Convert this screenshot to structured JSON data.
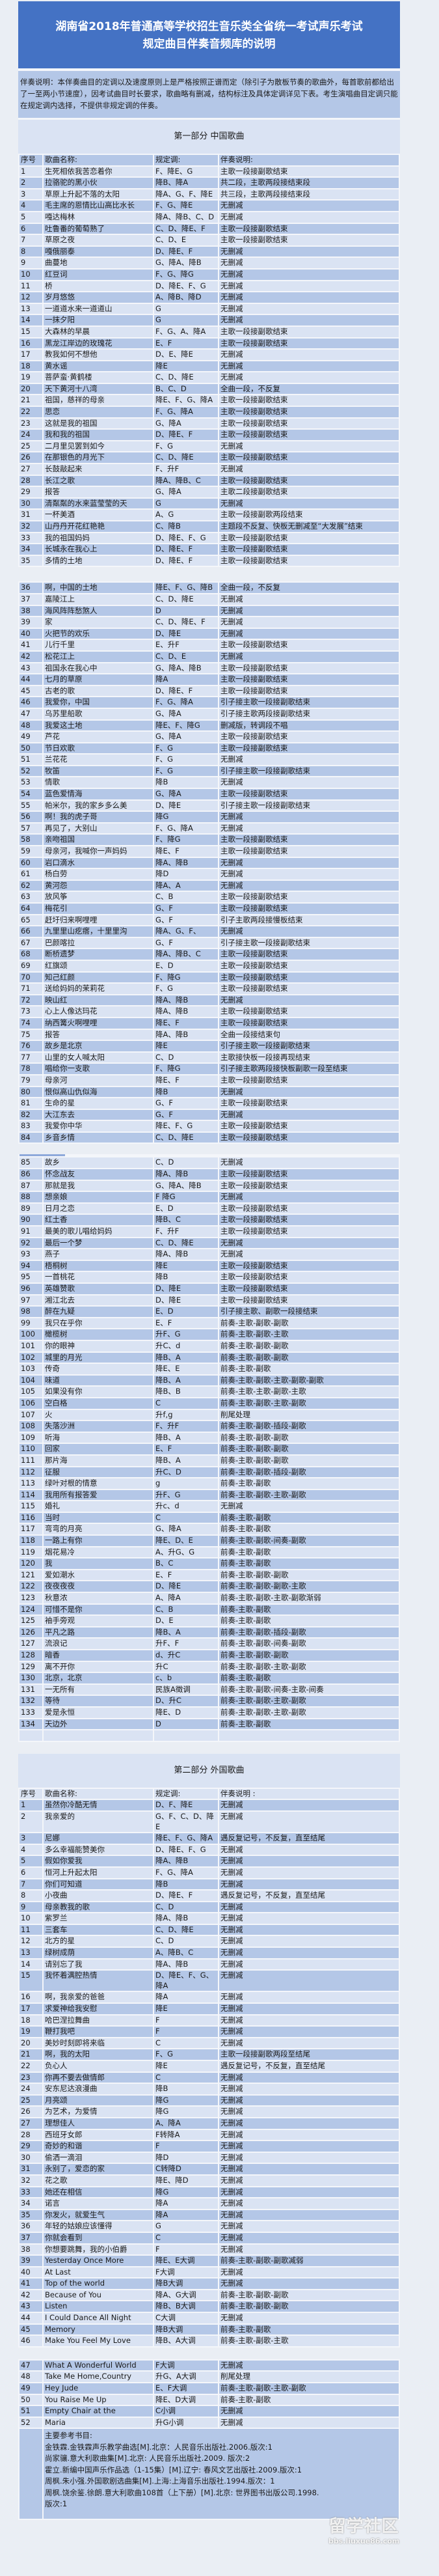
{
  "header": {
    "title_line1": "湖南省2018年普通高等学校招生音乐类全省统一考试声乐考试",
    "title_line2": "规定曲目伴奏音频库的说明"
  },
  "note": "伴奏说明：本伴奏曲目的定调以及速度原则上是严格按照正谱而定（除引子为散板节奏的歌曲外，每首歌前都给出了一至两小节速度），因考试曲目时长要求，歌曲略有删减，结构标注及具体定调详见下表。考生演唱曲目定调只能在规定调内选择，不提供非规定调的伴奏。",
  "colors": {
    "title_bg": "#4472c4",
    "row_dark": "#b4c7e7",
    "row_light": "#dae3f3"
  },
  "part1": {
    "heading": "第一部分  中国歌曲",
    "columns": [
      "序号",
      "歌曲名称:",
      "规定调:",
      "伴奏说明:"
    ],
    "segments": [
      [
        [
          "1",
          "生死相依我苦恋着你",
          "F、降E、G",
          "主歌一段接副歌结束"
        ],
        [
          "2",
          "拉骆驼的黑小伙",
          "降B、降A",
          "共二段，主歌两段接结束段"
        ],
        [
          "3",
          "草原上升起不落的太阳",
          "降A、G、F、降E",
          "共三段，主歌两段接结束段"
        ],
        [
          "4",
          "毛主席的恩情比山高比水长",
          "F、G、降E",
          "无删减"
        ],
        [
          "5",
          "嘎达梅林",
          "降A、降B、C、D",
          "无删减"
        ],
        [
          "6",
          "吐鲁番的葡萄熟了",
          "C、D、降E、F",
          "主歌一段接副歌结束"
        ],
        [
          "7",
          "草原之夜",
          "C、D、E",
          "主歌一段接副歌结束"
        ],
        [
          "8",
          "嘎俄丽泰",
          "D、降E、F",
          "无删减"
        ],
        [
          "9",
          "曲蔓地",
          "G、降A、降B",
          "无删减"
        ],
        [
          "10",
          "红豆词",
          "F、G、降G",
          "无删减"
        ],
        [
          "11",
          "桥",
          "D、降E、F、G",
          "无删减"
        ],
        [
          "12",
          "岁月悠悠",
          "A、降B、降D",
          "无删减"
        ],
        [
          "13",
          "一道道水来一道道山",
          "G",
          "无删减"
        ],
        [
          "14",
          "一抹夕阳",
          "G",
          "无删减"
        ],
        [
          "15",
          "大森林的早晨",
          "F、G、A、降A",
          "主歌一段接副歌结束"
        ],
        [
          "16",
          "黑龙江岸边的玫瑰花",
          "E、F",
          "主歌一段接副歌结束"
        ],
        [
          "17",
          "教我如何不想他",
          "D、E、降E",
          "无删减"
        ],
        [
          "18",
          "黄水谣",
          "降E",
          "无删减"
        ],
        [
          "19",
          "菩萨蛮·黄鹤楼",
          "C、D、降E",
          "无删减"
        ],
        [
          "20",
          "天下黄河十八湾",
          "B、C、D",
          "全曲一段，不反复"
        ],
        [
          "21",
          "祖国，慈祥的母亲",
          "降E、F、G、降A",
          "主歌一段接副歌结束"
        ],
        [
          "22",
          "思恋",
          "F、G、降A",
          "主歌一段接副歌结束"
        ],
        [
          "23",
          "这就是我的祖国",
          "G、降A",
          "主歌一段接副歌结束"
        ],
        [
          "24",
          "我和我的祖国",
          "D、降E、F",
          "主歌一段接副歌结束"
        ],
        [
          "25",
          "二月里见罢到如今",
          "F、G",
          "无删减"
        ],
        [
          "26",
          "在那银色的月光下",
          "C、D、降E",
          "主歌一段接副歌结束"
        ],
        [
          "27",
          "长鼓敲起来",
          "F、升F",
          "无删减"
        ],
        [
          "28",
          "长江之歌",
          "降A、降B、C",
          "主歌一段接副歌结束"
        ],
        [
          "29",
          "报答",
          "G、降A",
          "主歌二段接副歌结束"
        ],
        [
          "30",
          "清粼粼的水来蓝莹莹的天",
          "G",
          "无删减"
        ],
        [
          "31",
          "一杯美酒",
          "A、G",
          "主歌一段接副歌两段结束"
        ],
        [
          "32",
          "山丹丹开花红艳艳",
          "C、降B",
          "主题段不反复、快板无删减至“大发展”结束"
        ],
        [
          "33",
          "我的祖国妈妈",
          "D、降E、F、G",
          "主歌一段接副歌结束"
        ],
        [
          "34",
          "长城永在我心上",
          "D、降E、F",
          "主歌一段接副歌结束"
        ],
        [
          "35",
          "多情的土地",
          "D、降E、F",
          "主歌一段接副歌结束"
        ]
      ],
      [
        [
          "36",
          "啊，中国的土地",
          "降E、F、G、降B",
          "全曲一段，不反复"
        ],
        [
          "37",
          "嘉陵江上",
          "C、D、降E",
          "无删减"
        ],
        [
          "38",
          "海风阵阵愁煞人",
          "D",
          "无删减"
        ],
        [
          "39",
          "家",
          "C、D、降E、F",
          "无删减"
        ],
        [
          "40",
          "火把节的欢乐",
          "D、降E",
          "无删减"
        ],
        [
          "41",
          "儿行千里",
          "E、升F",
          "主歌一段接副歌结束"
        ],
        [
          "42",
          "松花江上",
          "C、D、E",
          "无删减"
        ],
        [
          "43",
          "祖国永在我心中",
          "G、降A、降B",
          "主歌一段接副歌结束"
        ],
        [
          "44",
          "七月的草原",
          "降A",
          "主歌一段接副歌结束"
        ],
        [
          "45",
          "古老的歌",
          "D、降E、F",
          "主歌一段接副歌结束"
        ],
        [
          "46",
          "我爱你，中国",
          "F、G、降A",
          "引子接主歌一段接副歌结束"
        ],
        [
          "47",
          "乌苏里船歌",
          "G、降A",
          "引子接主歌两段接副歌结束"
        ],
        [
          "48",
          "我爱这土地",
          "降E、F、降G",
          "删减版，转调段不唱"
        ],
        [
          "49",
          "芦花",
          "G、降A",
          "主歌一段接副歌结束"
        ],
        [
          "50",
          "节日欢歌",
          "F、G",
          "主歌一段接副歌结束"
        ],
        [
          "51",
          "兰花花",
          "F、G",
          "无删减"
        ],
        [
          "52",
          "牧笛",
          "F、G",
          "引子接主歌一段接副歌结束"
        ],
        [
          "53",
          "情歌",
          "降B",
          "无删减"
        ],
        [
          "54",
          "蓝色爱情海",
          "G、降A",
          "主歌一段接副歌结束"
        ],
        [
          "55",
          "帕米尔，我的家乡多么美",
          "D、降E",
          "引子接主歌一段接副歌结束"
        ],
        [
          "56",
          "啊！我的虎子哥",
          "降G",
          "无删减"
        ],
        [
          "57",
          "再见了，大别山",
          "F、G、降A",
          "无删减"
        ],
        [
          "58",
          "亲吻祖国",
          "F、降G",
          "主歌一段接副歌结束"
        ],
        [
          "59",
          "母亲河，我喊你一声妈妈",
          "降E、F",
          "主歌一段接副歌结束"
        ],
        [
          "60",
          "岩口滴水",
          "降A、降B",
          "无删减"
        ],
        [
          "61",
          "杨白劳",
          "降D",
          "无删减"
        ],
        [
          "62",
          "黄河怨",
          "降A、A",
          "无删减"
        ],
        [
          "63",
          "放风筝",
          "C、B",
          "主歌一段接副歌结束"
        ],
        [
          "64",
          "梅花引",
          "G、F",
          "主歌一段接副歌结束"
        ],
        [
          "65",
          "赶圩归来啊哩哩",
          "G、F",
          "引子主歌两段接慢板结束"
        ],
        [
          "66",
          "九里里山疙瘩，十里里沟",
          "降A、G、F、",
          "无删减"
        ],
        [
          "67",
          "巴颜喀拉",
          "G、F",
          "引子接主歌一段接副歌结束"
        ],
        [
          "68",
          "断桥遗梦",
          "降A、降B、C",
          "主歌一段接副歌结束"
        ],
        [
          "69",
          "红旗颂",
          "E、D",
          "主歌一段接副歌结束"
        ],
        [
          "70",
          "知己红颜",
          "F、降G",
          "主歌一段接副歌结束"
        ],
        [
          "71",
          "送给妈妈的茉莉花",
          "F、G",
          "主歌一段接副歌结束"
        ],
        [
          "72",
          "映山红",
          "降A、降B",
          "无删减"
        ],
        [
          "73",
          "心上人像达玛花",
          "降A、降B",
          "主歌一段接副歌结束"
        ],
        [
          "74",
          "纳西篝火啊哩哩",
          "降E、F",
          "主歌一段接副歌结束"
        ],
        [
          "75",
          "报答",
          "降A、降B",
          "全曲一段接结束句"
        ],
        [
          "76",
          "故乡是北京",
          "降E",
          "引子接主歌一段接副歌结束"
        ],
        [
          "77",
          "山里的女人喊太阳",
          "C、D",
          "主歌接快板一段接再现结束"
        ],
        [
          "78",
          "唱给你一支歌",
          "F、降G",
          "引子接主歌两段接快板副歌一段至结束"
        ],
        [
          "79",
          "母亲河",
          "降E、F",
          "主歌一段接副歌结束"
        ],
        [
          "80",
          "恨似高山仇似海",
          "降B",
          "无删减"
        ],
        [
          "81",
          "生命的星",
          "G、F",
          "主歌一段接副歌结束"
        ],
        [
          "82",
          "大江东去",
          "G、F",
          "无删减"
        ],
        [
          "83",
          "我爱你中华",
          "降E、F、G",
          "主歌一段接副歌结束"
        ],
        [
          "84",
          "乡音乡情",
          "C、D、降E",
          "主歌一段接副歌结束"
        ]
      ],
      [
        [
          "85",
          "故乡",
          "C、D",
          "无删减"
        ],
        [
          "86",
          "怀念战友",
          "降A、降B",
          "主歌一段接副歌结束"
        ],
        [
          "87",
          "那就是我",
          "G、降A、降B",
          "主歌一段接副歌结束"
        ],
        [
          "88",
          "想亲娘",
          "F 降G",
          "无删减"
        ],
        [
          "89",
          "日月之恋",
          "E、D",
          "主歌一段接副歌结束"
        ],
        [
          "90",
          "红土香",
          "降B、C",
          "主歌一段接副歌结束"
        ],
        [
          "91",
          "最美的歌儿唱给妈妈",
          "F、升F",
          "主歌一段接副歌结束"
        ],
        [
          "92",
          "最后一个梦",
          "C、D、降E",
          "无删减"
        ],
        [
          "93",
          "燕子",
          "降A、降B",
          "无删减"
        ],
        [
          "94",
          "梧桐树",
          "降E",
          "主歌一段接副歌结束"
        ],
        [
          "95",
          "一首桃花",
          "降B",
          "主歌一段接副歌结束"
        ],
        [
          "96",
          "英雄赞歌",
          "D、降E",
          "主歌一段接副歌结束"
        ],
        [
          "97",
          "湘江北去",
          "D、降E",
          "主歌一段接副歌结束"
        ],
        [
          "98",
          "醉在九疑",
          "E、D",
          "引子接主歌、副歌一段接结束"
        ],
        [
          "99",
          "我只在乎你",
          "E、F",
          "前奏-主歌-副歌-副歌"
        ],
        [
          "100",
          "橄榄树",
          "升F、G",
          "前奏-主歌-副歌-主歌"
        ],
        [
          "101",
          "你的眼神",
          "升C、d",
          "前奏-主歌-副歌-副歌"
        ],
        [
          "102",
          "城里的月光",
          "降B、A",
          "前奏-主歌-副歌-副歌"
        ],
        [
          "103",
          "传奇",
          "降E、E",
          "前奏-主歌-副歌"
        ],
        [
          "104",
          "味道",
          "降B、A",
          "前奏-主歌-副歌-主歌-副歌-副歌"
        ],
        [
          "105",
          "如果没有你",
          "降B、B",
          "前奏-主歌-主歌-副歌-主歌"
        ],
        [
          "106",
          "空白格",
          "C",
          "前奏-主歌-副歌-主歌-副歌"
        ],
        [
          "107",
          "火",
          "升f,g",
          "削尾处理"
        ],
        [
          "108",
          "失落沙洲",
          "F、升F",
          "前奏-主歌-副歌-插段-副歌"
        ],
        [
          "109",
          "听海",
          "降B、A",
          "前奏-主歌-副歌-副歌"
        ],
        [
          "110",
          "回家",
          "E、F",
          "前奏-主歌-副歌-副歌"
        ],
        [
          "111",
          "那片海",
          "降B、A",
          "前奏-主歌-副歌-副歌"
        ],
        [
          "112",
          "征服",
          "升C、D",
          "前奏-主歌-副歌-插段-副歌"
        ],
        [
          "113",
          "绿叶对根的情意",
          "g",
          "前奏-主歌-副歌"
        ],
        [
          "114",
          "我用所有报答爱",
          "升F、G",
          "前奏-主歌-副歌-主歌-副歌"
        ],
        [
          "115",
          "婚礼",
          "升c、d",
          "无删减"
        ],
        [
          "116",
          "当时",
          "C",
          "前奏-主歌-副歌"
        ],
        [
          "117",
          "弯弯的月亮",
          "G、降A",
          "前奏-主歌-副歌"
        ],
        [
          "118",
          "一路上有你",
          "降E、D、E",
          "前奏-主歌-副歌-间奏-副歌"
        ],
        [
          "119",
          "烟花易冷",
          "A、升G、G",
          "前奏-主歌-副歌"
        ],
        [
          "120",
          "我",
          "B、C",
          "前奏-主歌-副歌"
        ],
        [
          "121",
          "爱如潮水",
          "E、F",
          "前奏-主歌-副歌-副歌"
        ],
        [
          "122",
          "夜夜夜夜",
          "D、降E",
          "前奏-主歌-副歌-副歌-主歌"
        ],
        [
          "123",
          "秋意浓",
          "A、降A",
          "前奏-主歌-副歌-主歌-副歌渐弱"
        ],
        [
          "124",
          "可惜不是你",
          "C、B",
          "前奏-主歌-副歌"
        ],
        [
          "125",
          "袖手旁观",
          "D、E",
          "前奏-主歌-副歌"
        ],
        [
          "126",
          "平凡之路",
          "降B、A",
          "前奏-主歌-副歌-插段-副歌"
        ],
        [
          "127",
          "流浪记",
          "升F、F",
          "前奏-主歌-副歌-间奏-副歌"
        ],
        [
          "128",
          "暗香",
          "d、升C",
          "前奏-主歌-副歌-副歌"
        ],
        [
          "129",
          "离不开你",
          "升C",
          "前奏-主歌-副歌-主歌-副歌"
        ],
        [
          "130",
          "北京，北京",
          "c、b",
          "前奏-主歌-副歌"
        ],
        [
          "131",
          "一无所有",
          "民族A徵调",
          "前奏-主歌-副歌-间奏-主歌-间奏"
        ],
        [
          "132",
          "等待",
          "D、升C",
          "前奏-主歌-副歌-主歌-副歌"
        ],
        [
          "133",
          "爱是永恒",
          "降E、D",
          "前奏-主歌-副歌-主歌-副歌"
        ],
        [
          "134",
          "天边外",
          "D",
          "前奏-主歌-副歌"
        ],
        [
          "",
          "",
          "",
          ""
        ]
      ]
    ]
  },
  "part2": {
    "heading": "第二部分  外国歌曲",
    "columns": [
      "序号",
      "歌曲名称:",
      "规定调:",
      "伴奏说明 :"
    ],
    "segments": [
      [
        [
          "1",
          "虽然你冷酷无情",
          "D、F、降E",
          "无删减"
        ],
        [
          "2",
          "我亲爱的",
          "G、F、C、D、降E",
          "无删减"
        ],
        [
          "3",
          "尼娜",
          "降E、F、G、降A",
          "遇反复记号，不反复，直至结尾"
        ],
        [
          "4",
          "多么幸福能赞美你",
          "D、降E、F、G",
          "无删减"
        ],
        [
          "5",
          "假如你爱我",
          "降A、降B",
          "无删减"
        ],
        [
          "6",
          "恒河上升起太阳",
          "F、G、降A",
          "无删减"
        ],
        [
          "7",
          "你们可知道",
          "降B",
          "无删减"
        ],
        [
          "8",
          "小夜曲",
          "D、降E、F",
          "遇反复记号，不反复，直至结尾"
        ],
        [
          "9",
          "母亲教我的歌",
          "C、D",
          "无删减"
        ],
        [
          "10",
          "紫罗兰",
          "降A、降B",
          "无删减"
        ],
        [
          "11",
          "三套车",
          "C、D、降E",
          "无删减"
        ],
        [
          "12",
          "北方的星",
          "C、D",
          "无删减"
        ],
        [
          "13",
          "绿树成荫",
          "A、降B、C",
          "无删减"
        ],
        [
          "14",
          "请别忘了我",
          "降A、降B",
          "无删减"
        ],
        [
          "15",
          "我怀着满腔热情",
          "D、降E、F、G、降A",
          "无删减"
        ],
        [
          "16",
          "啊，我亲爱的爸爸",
          "降A",
          "无删减"
        ],
        [
          "17",
          "求爱神给我安慰",
          "降E",
          "无删减"
        ],
        [
          "18",
          "哈巴涅拉舞曲",
          "F",
          "无删减"
        ],
        [
          "19",
          "鞭打我吧",
          "F",
          "无删减"
        ],
        [
          "20",
          "美妙时刻即将来临",
          "C",
          "无删减"
        ],
        [
          "21",
          "啊，我的太阳",
          "F、G",
          "主歌一段接副歌两段至结尾"
        ],
        [
          "22",
          "负心人",
          "降E",
          "遇反复记号，不反复，直至结尾"
        ],
        [
          "23",
          "你再不要去做情郎",
          "C",
          "无删减"
        ],
        [
          "24",
          "安东尼达浪漫曲",
          "降B",
          "无删减"
        ],
        [
          "25",
          "月亮颂",
          "降G",
          "无删减"
        ],
        [
          "26",
          "为艺术，为爱情",
          "降G",
          "无删减"
        ],
        [
          "27",
          "理想佳人",
          "A、降A",
          "无删减"
        ],
        [
          "28",
          "西班牙女郎",
          "F转降A",
          "无删减"
        ],
        [
          "29",
          "奇妙的和谐",
          "F",
          "无删减"
        ],
        [
          "30",
          "偷洒一滴泪",
          "降D",
          "无删减"
        ],
        [
          "31",
          "永别了，爱恋的家",
          "C转降D",
          "无删减"
        ],
        [
          "32",
          "花之歌",
          "降E、降D",
          "无删减"
        ],
        [
          "33",
          "她还在相信",
          "降G",
          "无删减"
        ],
        [
          "34",
          "诺言",
          "降A",
          "无删减"
        ],
        [
          "35",
          "你发火，就爱生气",
          "降A",
          "无删减"
        ],
        [
          "36",
          "年轻的姑娘应该懂得",
          "G",
          "无删减"
        ],
        [
          "37",
          "你就会看到",
          "C",
          "无删减"
        ],
        [
          "38",
          "你想要跳舞，我的小伯爵",
          "F",
          "无删减"
        ],
        [
          "39",
          "Yesterday Once More",
          "降E、E大调",
          "前奏-主歌-副歌-副歌减弱"
        ],
        [
          "40",
          "At Last",
          "F大调",
          "无删减"
        ],
        [
          "41",
          "Top of the world",
          "降B大调",
          "无删减"
        ],
        [
          "42",
          "Because of You",
          "降A、G大调",
          "前奏-主歌-副歌-副歌"
        ],
        [
          "43",
          "Listen",
          "降B、B大调",
          "前奏-主歌-副歌-副歌"
        ],
        [
          "44",
          "I Could Dance All Night",
          "C大调",
          "无删减"
        ],
        [
          "45",
          "Memory",
          "降B大调",
          "前奏-主歌-副歌"
        ],
        [
          "46",
          "Make You Feel My Love",
          "降B、A大调",
          "前奏-主歌-副歌-主歌"
        ]
      ],
      [
        [
          "47",
          "What A Wonderful World",
          "F大调",
          "无删减"
        ],
        [
          "48",
          "Take Me Home,Country",
          "升G、A大调",
          "削尾处理"
        ],
        [
          "49",
          "Hey Jude",
          "E、F大调",
          "前奏-主歌-副歌-主歌-副歌"
        ],
        [
          "50",
          "You Raise Me Up",
          "降E、D大调",
          "前奏-主歌-副歌"
        ],
        [
          "51",
          "Empty Chair at the",
          "C小调",
          "无删减"
        ],
        [
          "52",
          "Maria",
          "升G小调",
          "无删减"
        ]
      ]
    ]
  },
  "references": {
    "title": "主要参考书目:",
    "items": [
      "金铁霖.金铁霖声乐教学曲选[M].北京：人民音乐出版社.2006.版次:1",
      "尚家骧.意大利歌曲集[M].北京: 人民音乐出版社.2009. 版次:2",
      "霍立.新编中国声乐作品选（1-15集）[M].辽宁: 春风文艺出版社.2009.版次:1",
      "周枫.朱小强.外国歌剧选曲集[M].上海:上海音乐出版社.1994.版次：1",
      "周枫.饶余鉴.徐朗.意大利歌曲108首（上下册）[M].北京: 世界图书出版公司.1998.",
      "版次:1"
    ]
  },
  "watermark": {
    "logo": "留学社区",
    "url": "bbs.liuxue86.com"
  }
}
